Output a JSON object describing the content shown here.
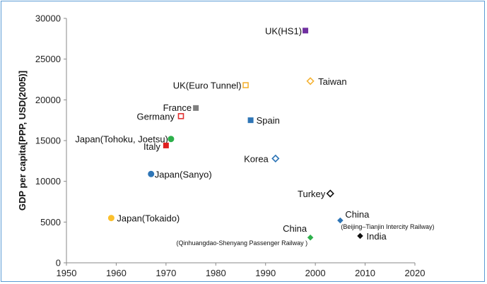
{
  "chart_data": {
    "type": "scatter",
    "title": "",
    "xlabel": "",
    "ylabel": "GDP per capita[PPP, USD(2005)]",
    "xlim": [
      1950,
      2020
    ],
    "ylim": [
      0,
      30000
    ],
    "xticks": [
      "1950",
      "1960",
      "1970",
      "1980",
      "1990",
      "2000",
      "2010",
      "2020"
    ],
    "yticks": [
      "0",
      "5000",
      "10000",
      "15000",
      "20000",
      "25000",
      "30000"
    ],
    "grid": false,
    "legend": "none",
    "points": [
      {
        "label": "UK(HS1)",
        "x": 1998,
        "y": 28500,
        "marker": "square",
        "filled": true,
        "color": "#7030a0"
      },
      {
        "label": "Taiwan",
        "x": 1999,
        "y": 22300,
        "marker": "diamond",
        "filled": false,
        "color": "#f5b335"
      },
      {
        "label": "UK(Euro Tunnel)",
        "x": 1986,
        "y": 21800,
        "marker": "square",
        "filled": false,
        "color": "#f5b335"
      },
      {
        "label": "France",
        "x": 1976,
        "y": 19000,
        "marker": "square",
        "filled": true,
        "color": "#808080"
      },
      {
        "label": "Germany",
        "x": 1973,
        "y": 18000,
        "marker": "square",
        "filled": false,
        "color": "#e03030"
      },
      {
        "label": "Spain",
        "x": 1987,
        "y": 17500,
        "marker": "square",
        "filled": true,
        "color": "#2e75b6"
      },
      {
        "label": "Japan(Tohoku, Joetsu)",
        "x": 1971,
        "y": 15200,
        "marker": "circle",
        "filled": true,
        "color": "#2db04b"
      },
      {
        "label": "Italy",
        "x": 1970,
        "y": 14400,
        "marker": "square",
        "filled": true,
        "color": "#e02020"
      },
      {
        "label": "Korea",
        "x": 1992,
        "y": 12800,
        "marker": "diamond",
        "filled": false,
        "color": "#2e75b6"
      },
      {
        "label": "Japan(Sanyo)",
        "x": 1967,
        "y": 10900,
        "marker": "circle",
        "filled": true,
        "color": "#2e75b6"
      },
      {
        "label": "Turkey",
        "x": 2003,
        "y": 8500,
        "marker": "diamond",
        "filled": false,
        "color": "#111111"
      },
      {
        "label": "Japan(Tokaido)",
        "x": 1959,
        "y": 5500,
        "marker": "circle",
        "filled": true,
        "color": "#fbc02d"
      },
      {
        "label": "China",
        "sublabel": "(Beijing–Tianjin Intercity Railway)",
        "x": 2005,
        "y": 5200,
        "marker": "diamond",
        "filled": true,
        "color": "#2e75b6"
      },
      {
        "label": "China",
        "sublabel": "(Qinhuangdao-Shenyang Passenger Railway )",
        "x": 1999,
        "y": 3100,
        "marker": "diamond",
        "filled": true,
        "color": "#2db04b"
      },
      {
        "label": "India",
        "x": 2009,
        "y": 3300,
        "marker": "diamond",
        "filled": true,
        "color": "#111111"
      }
    ]
  }
}
